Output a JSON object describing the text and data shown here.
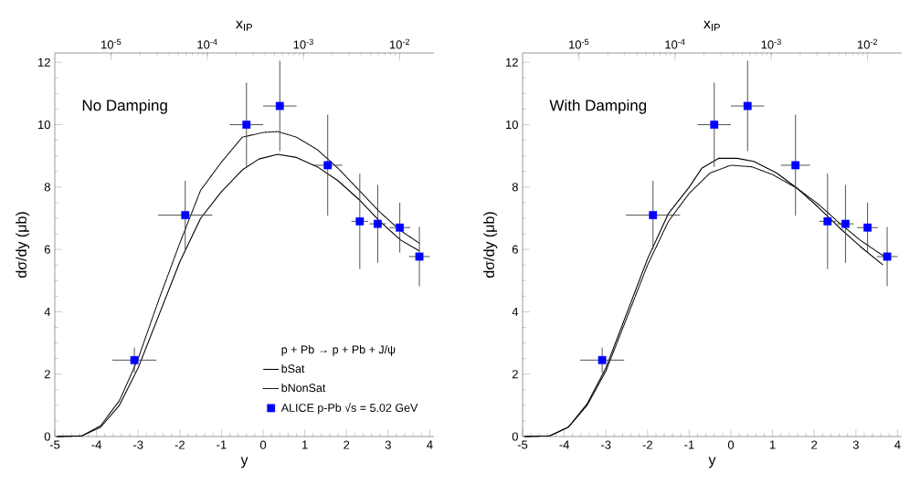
{
  "chart_data": [
    {
      "type": "line",
      "xlabel": "y",
      "ylabel": "dσ/dy (μb)",
      "x2label": "x$_{IP}$",
      "xlim": [
        -5,
        4.1
      ],
      "ylim": [
        0,
        12.3
      ],
      "xticks": [
        -5,
        -4,
        -3,
        -2,
        -1,
        0,
        1,
        2,
        3,
        4
      ],
      "yticks": [
        0,
        2,
        4,
        6,
        8,
        10,
        12
      ],
      "log": "x2",
      "x2lim": [
        2.6e-06,
        0.0227
      ],
      "x2ticks": [
        {
          "value": 1e-05,
          "label": "10$^{-5}$"
        },
        {
          "value": 0.0001,
          "label": "10$^{-4}$"
        },
        {
          "value": 0.001,
          "label": "10$^{-3}$"
        },
        {
          "value": 0.01,
          "label": "10$^{-2}$"
        }
      ],
      "annotations": [
        "No Damping"
      ],
      "legend": "bottom right",
      "legend_title": "p + Pb → p + Pb + J/ψ",
      "series": [
        {
          "name": "bSat",
          "line_style": "solid",
          "color": "#000000",
          "x": [
            -4.95,
            -4.35,
            -3.9,
            -3.45,
            -3.0,
            -2.5,
            -2.0,
            -1.5,
            -1.0,
            -0.5,
            -0.1,
            0.35,
            0.8,
            1.3,
            1.8,
            2.3,
            2.8,
            3.3,
            3.75
          ],
          "values": [
            0,
            0.02,
            0.3,
            1.0,
            2.2,
            3.9,
            5.6,
            7.0,
            7.85,
            8.55,
            8.9,
            9.05,
            8.95,
            8.65,
            8.2,
            7.6,
            6.9,
            6.3,
            5.95
          ]
        },
        {
          "name": "bNonSat",
          "line_style": "dotted",
          "color": "#000000",
          "x": [
            -4.95,
            -4.35,
            -3.9,
            -3.45,
            -3.0,
            -2.5,
            -2.0,
            -1.5,
            -1.0,
            -0.5,
            0.0,
            0.35,
            0.8,
            1.3,
            1.8,
            2.3,
            2.8,
            3.3,
            3.75
          ],
          "values": [
            0,
            0.02,
            0.35,
            1.15,
            2.5,
            4.4,
            6.2,
            7.9,
            8.8,
            9.6,
            9.75,
            9.78,
            9.6,
            9.2,
            8.6,
            7.9,
            7.2,
            6.6,
            6.2
          ]
        },
        {
          "name": "ALICE p-Pb √s = 5.02 GeV",
          "type": "scatter",
          "marker": "square",
          "color": "#0000ff",
          "x": [
            -3.09,
            -1.87,
            -0.4,
            0.4,
            1.55,
            2.32,
            2.75,
            3.28,
            3.75
          ],
          "values": [
            2.45,
            7.1,
            10.0,
            10.6,
            8.7,
            6.9,
            6.82,
            6.7,
            5.77
          ],
          "errors": [
            0.4,
            1.1,
            1.35,
            1.45,
            1.62,
            1.53,
            1.25,
            0.8,
            0.95
          ],
          "xerrors": [
            0.53,
            0.65,
            0.4,
            0.4,
            0.35,
            0.2,
            0.2,
            0.25,
            0.25
          ]
        }
      ]
    },
    {
      "type": "line",
      "xlabel": "y",
      "ylabel": "dσ/dy (μb)",
      "x2label": "x$_{IP}$",
      "xlim": [
        -5,
        4.1
      ],
      "ylim": [
        0,
        12.3
      ],
      "xticks": [
        -5,
        -4,
        -3,
        -2,
        -1,
        0,
        1,
        2,
        3,
        4
      ],
      "yticks": [
        0,
        2,
        4,
        6,
        8,
        10,
        12
      ],
      "log": "x2",
      "x2lim": [
        2.6e-06,
        0.0227
      ],
      "x2ticks": [
        {
          "value": 1e-05,
          "label": "10$^{-5}$"
        },
        {
          "value": 0.0001,
          "label": "10$^{-4}$"
        },
        {
          "value": 0.001,
          "label": "10$^{-3}$"
        },
        {
          "value": 0.01,
          "label": "10$^{-2}$"
        }
      ],
      "annotations": [
        "With Damping"
      ],
      "series": [
        {
          "line_style": "solid",
          "color": "#000000",
          "x": [
            -4.95,
            -4.35,
            -3.9,
            -3.45,
            -3.0,
            -2.5,
            -2.0,
            -1.5,
            -1.0,
            -0.7,
            -0.3,
            0.15,
            0.55,
            1.1,
            1.6,
            2.1,
            2.6,
            3.1,
            3.65
          ],
          "values": [
            0,
            0.02,
            0.3,
            1.05,
            2.2,
            3.95,
            5.7,
            7.15,
            8.0,
            8.6,
            8.92,
            8.92,
            8.82,
            8.45,
            7.95,
            7.35,
            6.7,
            6.1,
            5.5
          ]
        },
        {
          "line_style": "dotted",
          "color": "#000000",
          "x": [
            -4.95,
            -4.35,
            -3.9,
            -3.45,
            -3.0,
            -2.5,
            -2.0,
            -1.5,
            -1.0,
            -0.5,
            0.0,
            0.5,
            1.0,
            1.6,
            2.1,
            2.6,
            3.1,
            3.65
          ],
          "values": [
            0,
            0.02,
            0.3,
            1.0,
            2.1,
            3.8,
            5.5,
            6.9,
            7.8,
            8.45,
            8.7,
            8.65,
            8.4,
            7.95,
            7.45,
            6.85,
            6.3,
            5.8
          ]
        },
        {
          "type": "scatter",
          "marker": "square",
          "color": "#0000ff",
          "x": [
            -3.09,
            -1.87,
            -0.4,
            0.4,
            1.55,
            2.32,
            2.75,
            3.28,
            3.75
          ],
          "values": [
            2.45,
            7.1,
            10.0,
            10.6,
            8.7,
            6.9,
            6.82,
            6.7,
            5.77
          ],
          "errors": [
            0.4,
            1.1,
            1.35,
            1.45,
            1.62,
            1.53,
            1.25,
            0.8,
            0.95
          ],
          "xerrors": [
            0.53,
            0.65,
            0.4,
            0.4,
            0.35,
            0.2,
            0.2,
            0.25,
            0.25
          ]
        }
      ]
    }
  ]
}
